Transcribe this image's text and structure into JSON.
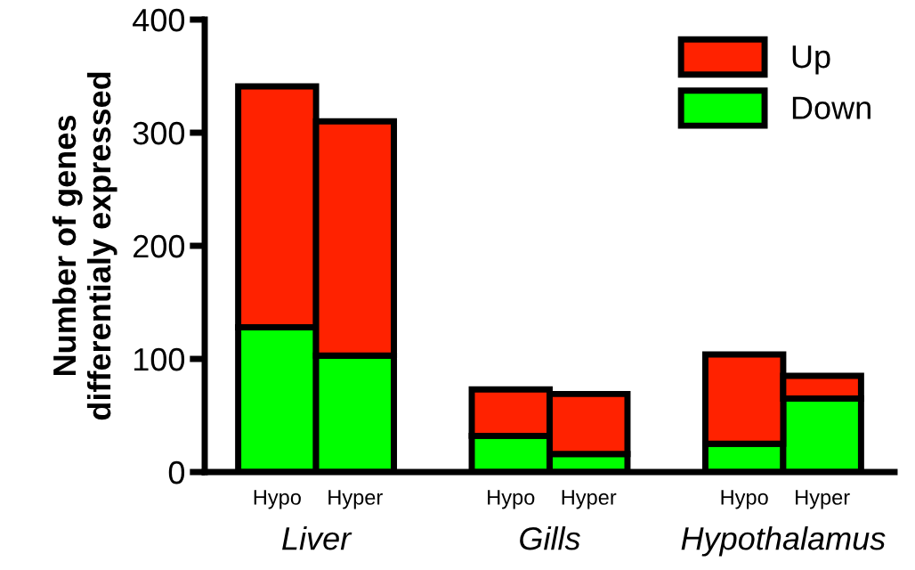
{
  "chart_data": {
    "type": "bar",
    "stacked": true,
    "categories": [
      "Hypo",
      "Hyper",
      "Hypo",
      "Hyper",
      "Hypo",
      "Hyper"
    ],
    "series": [
      {
        "name": "Down",
        "color": "#00ff00",
        "values": [
          128,
          103,
          32,
          16,
          25,
          65
        ]
      },
      {
        "name": "Up",
        "color": "#ff2200",
        "values": [
          213,
          207,
          41,
          53,
          79,
          20
        ]
      }
    ],
    "ylabel": "Number of genes\ndifferentialy expressed",
    "ylim": [
      0,
      400
    ],
    "yticks": [
      0,
      100,
      200,
      300,
      400
    ],
    "annotations": [
      "Liver",
      "Gills",
      "Hypothalamus"
    ],
    "legend": "top right",
    "grid": false
  }
}
